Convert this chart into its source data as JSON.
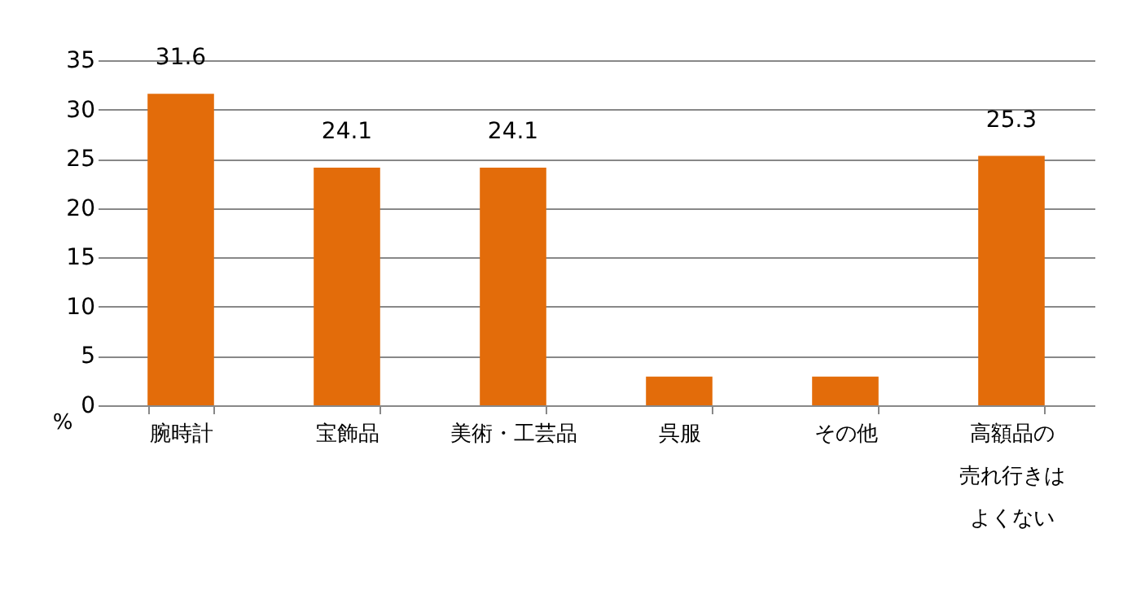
{
  "chart_data": {
    "type": "bar",
    "ylabel": "%",
    "categories": [
      "腕時計",
      "宝飾品",
      "美術・工芸品",
      "呉服",
      "その他",
      "高額品の売れ行きはよくない"
    ],
    "values": [
      31.6,
      24.1,
      24.1,
      2.9,
      2.9,
      25.3
    ],
    "value_labels": [
      "31.6",
      "24.1",
      "24.1",
      null,
      null,
      "25.3"
    ],
    "color": "#e36c0a",
    "ylim": [
      0,
      35
    ],
    "yticks": [
      0,
      5,
      10,
      15,
      20,
      25,
      30,
      35
    ],
    "grid": "y"
  }
}
